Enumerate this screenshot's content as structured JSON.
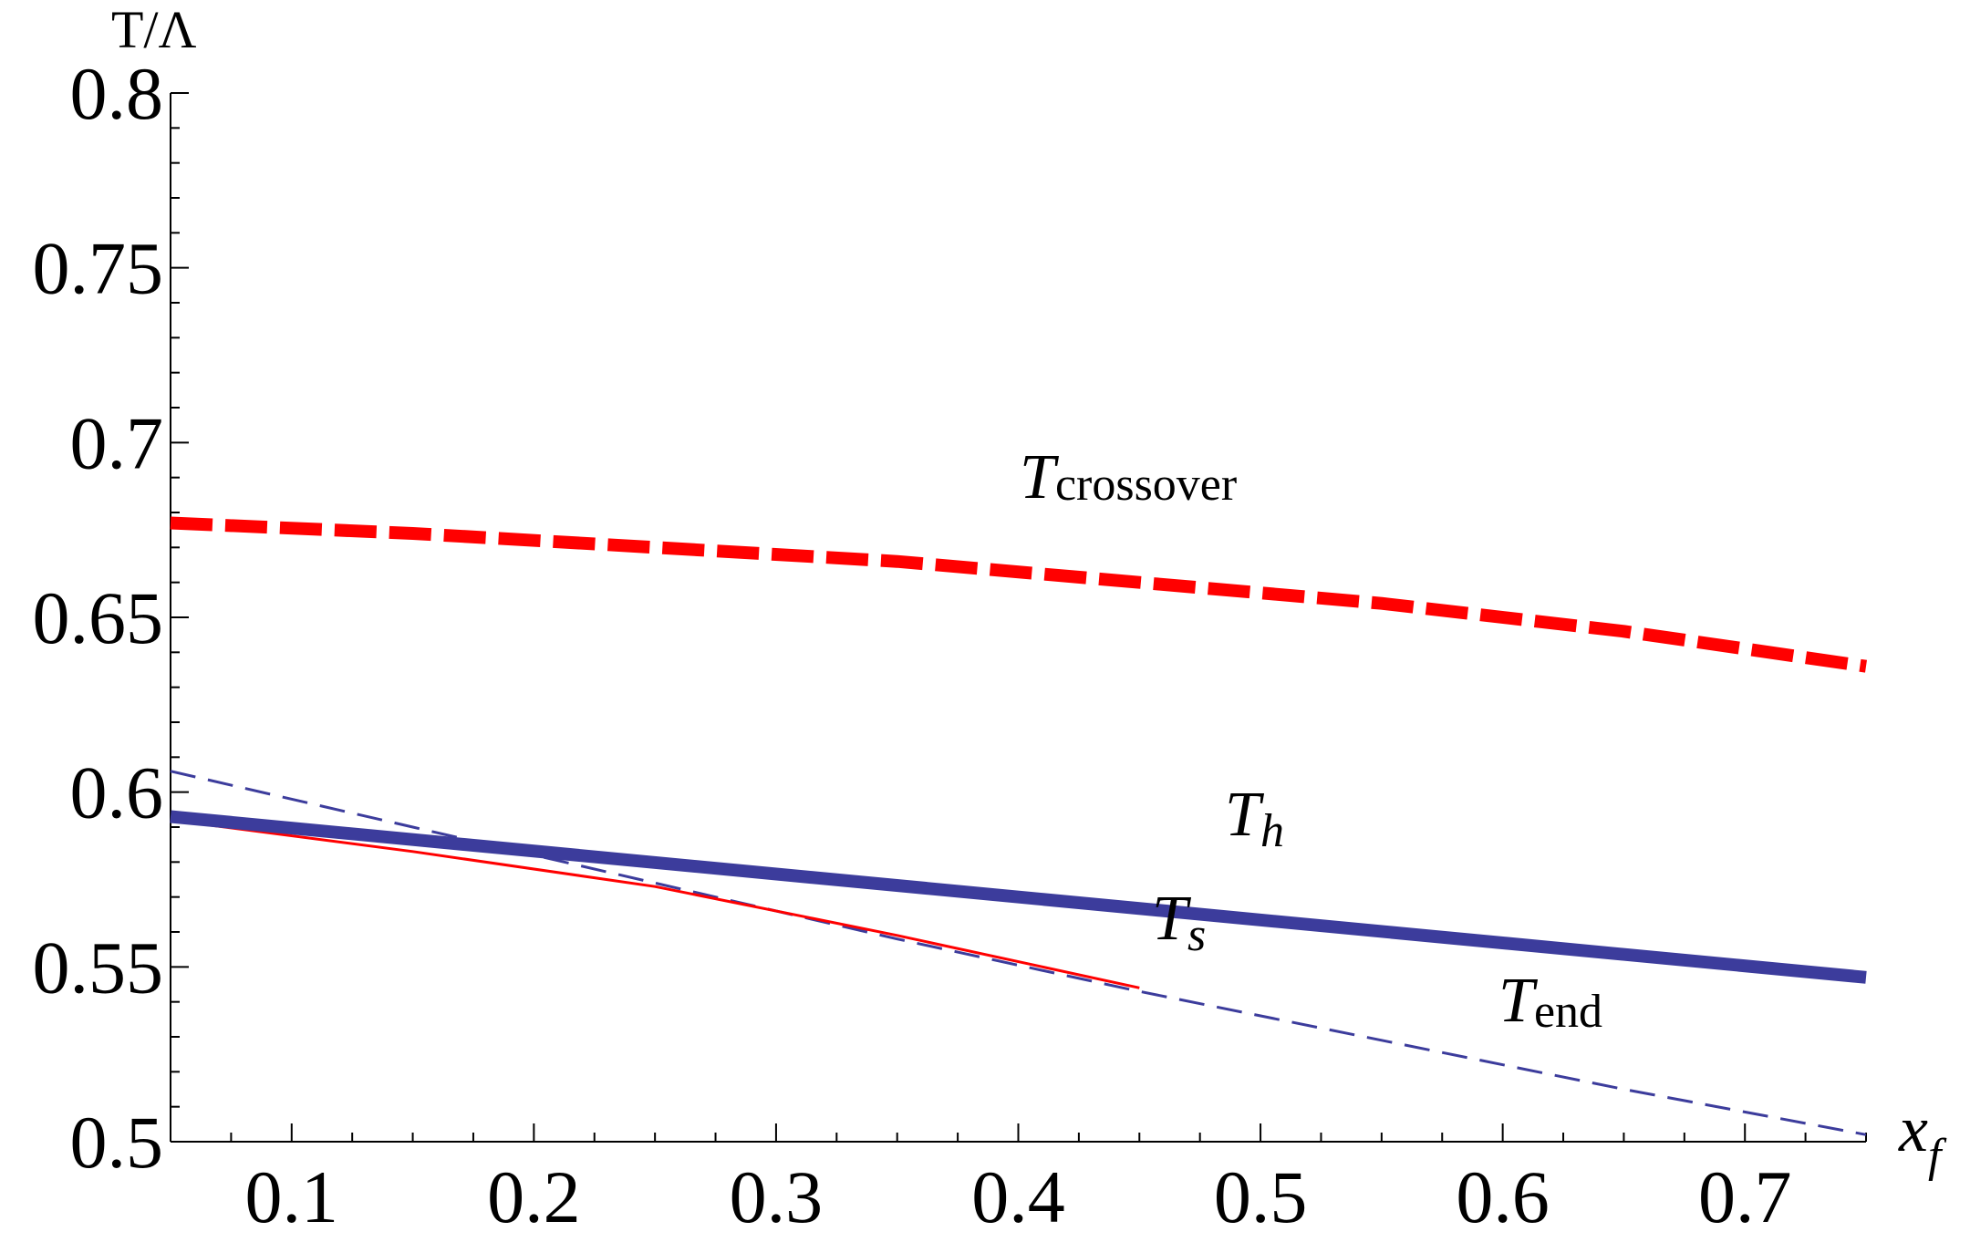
{
  "chart_data": {
    "type": "line",
    "title": "",
    "xlabel": "x_f",
    "ylabel": "T/Λ",
    "xlabel_main": "x",
    "xlabel_sub": "f",
    "xlim": [
      0.05,
      0.75
    ],
    "ylim": [
      0.5,
      0.8
    ],
    "xticks": [
      0.1,
      0.2,
      0.3,
      0.4,
      0.5,
      0.6,
      0.7
    ],
    "xtick_labels": [
      "0.1",
      "0.2",
      "0.3",
      "0.4",
      "0.5",
      "0.6",
      "0.7"
    ],
    "yticks": [
      0.5,
      0.55,
      0.6,
      0.65,
      0.7,
      0.75,
      0.8
    ],
    "ytick_labels": [
      "0.5",
      "0.55",
      "0.6",
      "0.65",
      "0.7",
      "0.75",
      "0.8"
    ],
    "grid": false,
    "legend": "none",
    "series": [
      {
        "name": "T_crossover",
        "label_main": "T",
        "label_sub": "crossover",
        "color": "#ff0000",
        "style": "thick-dashed",
        "x": [
          0.05,
          0.15,
          0.25,
          0.35,
          0.45,
          0.55,
          0.65,
          0.75
        ],
        "y": [
          0.677,
          0.674,
          0.67,
          0.666,
          0.66,
          0.654,
          0.646,
          0.636
        ]
      },
      {
        "name": "T_h",
        "label_main": "T",
        "label_sub": "h",
        "color": "#3c3c9c",
        "style": "thick-solid",
        "x": [
          0.05,
          0.75
        ],
        "y": [
          0.593,
          0.547
        ]
      },
      {
        "name": "T_s",
        "label_main": "T",
        "label_sub": "s",
        "color": "#ff0000",
        "style": "thin-solid",
        "x": [
          0.05,
          0.15,
          0.25,
          0.35,
          0.45
        ],
        "y": [
          0.592,
          0.583,
          0.573,
          0.559,
          0.544
        ]
      },
      {
        "name": "T_end",
        "label_main": "T",
        "label_sub": "end",
        "color": "#3c3c9c",
        "style": "thin-dashed",
        "x": [
          0.05,
          0.15,
          0.25,
          0.35,
          0.45,
          0.55,
          0.65,
          0.75
        ],
        "y": [
          0.606,
          0.59,
          0.574,
          0.558,
          0.543,
          0.529,
          0.515,
          0.502
        ]
      }
    ]
  }
}
